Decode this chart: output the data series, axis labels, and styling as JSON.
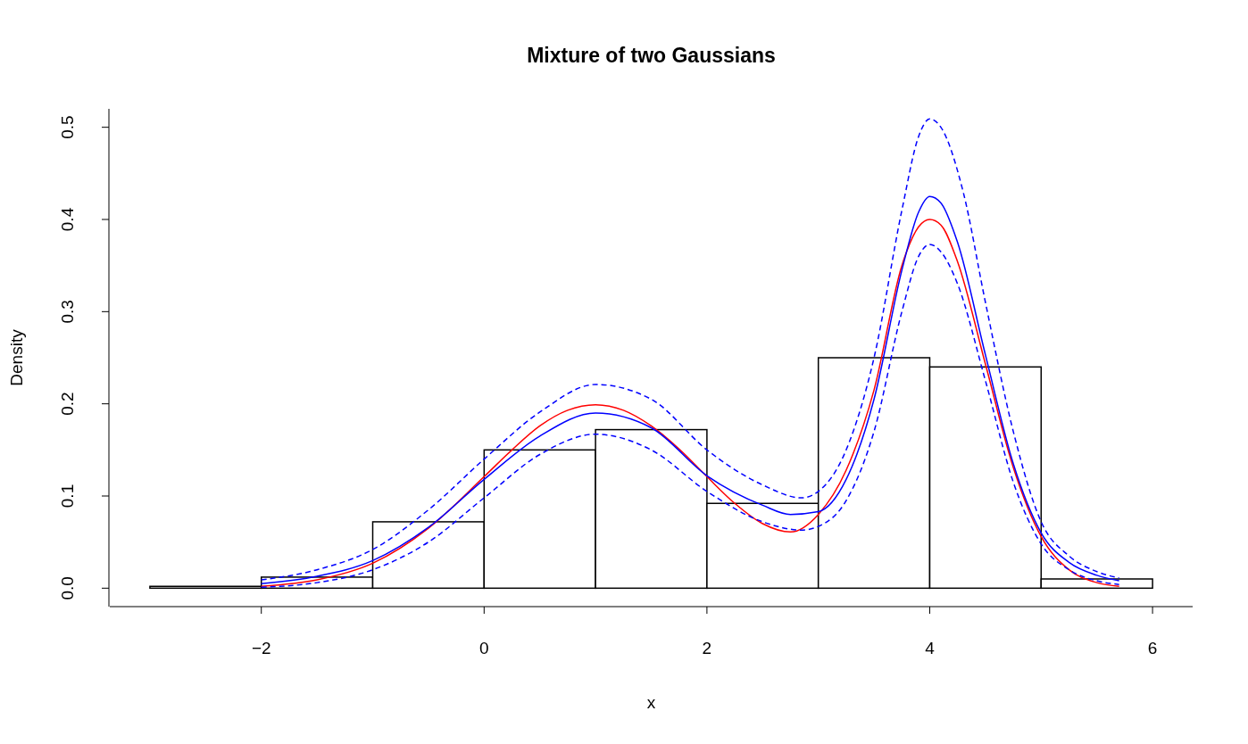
{
  "chart_data": {
    "type": "histogram",
    "title": "Mixture of two Gaussians",
    "xlabel": "x",
    "ylabel": "Density",
    "bins": [
      -3,
      -2,
      -1,
      0,
      1,
      2,
      3,
      4,
      5,
      6
    ],
    "values": [
      0.002,
      0.012,
      0.072,
      0.15,
      0.172,
      0.092,
      0.25,
      0.24,
      0.01
    ],
    "xlim": [
      -3.36,
      6.36
    ],
    "xticks": [
      -2,
      0,
      2,
      4,
      6
    ],
    "ylim": [
      -0.02,
      0.52
    ],
    "yticks": [
      {
        "value": 0,
        "label": "0.0"
      },
      0.1,
      0.2,
      0.3,
      0.4,
      0.5
    ],
    "grid": false,
    "series": [
      {
        "type": "line",
        "color": "#ff0000",
        "line_style": "solid",
        "x": [
          -2,
          -1.5,
          -1,
          -0.5,
          0,
          0.25,
          0.5,
          0.75,
          1,
          1.25,
          1.5,
          1.75,
          2,
          2.25,
          2.5,
          2.75,
          3,
          3.25,
          3.5,
          3.75,
          3.9,
          4,
          4.1,
          4.25,
          4.5,
          4.75,
          5,
          5.25,
          5.5,
          5.7
        ],
        "values": [
          0.002,
          0.009,
          0.027,
          0.065,
          0.121,
          0.15,
          0.176,
          0.193,
          0.199,
          0.193,
          0.176,
          0.151,
          0.121,
          0.092,
          0.07,
          0.061,
          0.08,
          0.128,
          0.215,
          0.35,
          0.392,
          0.4,
          0.394,
          0.354,
          0.243,
          0.131,
          0.056,
          0.02,
          0.006,
          0.002
        ]
      },
      {
        "type": "line",
        "color": "#0000ff",
        "line_style": "solid",
        "x": [
          -2,
          -1.5,
          -1,
          -0.5,
          0,
          0.5,
          1,
          1.5,
          2,
          2.5,
          2.75,
          3,
          3.25,
          3.5,
          3.75,
          3.9,
          4,
          4.1,
          4.25,
          4.5,
          4.75,
          5,
          5.25,
          5.5,
          5.7
        ],
        "values": [
          0.005,
          0.013,
          0.03,
          0.066,
          0.118,
          0.165,
          0.19,
          0.174,
          0.122,
          0.09,
          0.08,
          0.083,
          0.118,
          0.205,
          0.345,
          0.408,
          0.425,
          0.418,
          0.375,
          0.253,
          0.135,
          0.06,
          0.028,
          0.014,
          0.008
        ]
      },
      {
        "type": "line",
        "color": "#0000ff",
        "line_style": "dashed",
        "x": [
          -2,
          -1.5,
          -1,
          -0.5,
          0,
          0.5,
          1,
          1.5,
          2,
          2.5,
          2.85,
          3,
          3.25,
          3.5,
          3.75,
          3.9,
          4,
          4.1,
          4.3,
          4.5,
          4.75,
          5,
          5.25,
          5.5,
          5.7
        ],
        "values": [
          0.009,
          0.02,
          0.042,
          0.085,
          0.14,
          0.191,
          0.221,
          0.205,
          0.15,
          0.112,
          0.098,
          0.105,
          0.15,
          0.25,
          0.41,
          0.49,
          0.509,
          0.5,
          0.43,
          0.31,
          0.17,
          0.072,
          0.035,
          0.018,
          0.011
        ]
      },
      {
        "type": "line",
        "color": "#0000ff",
        "line_style": "dashed",
        "x": [
          -2,
          -1.5,
          -1,
          -0.5,
          0,
          0.5,
          1,
          1.5,
          2,
          2.5,
          2.85,
          3,
          3.25,
          3.5,
          3.75,
          3.9,
          4,
          4.1,
          4.25,
          4.5,
          4.75,
          5,
          5.25,
          5.5,
          5.7
        ],
        "values": [
          0.001,
          0.006,
          0.02,
          0.05,
          0.098,
          0.145,
          0.167,
          0.15,
          0.105,
          0.072,
          0.063,
          0.067,
          0.095,
          0.17,
          0.3,
          0.36,
          0.373,
          0.365,
          0.33,
          0.225,
          0.115,
          0.048,
          0.02,
          0.008,
          0.004
        ]
      }
    ]
  }
}
